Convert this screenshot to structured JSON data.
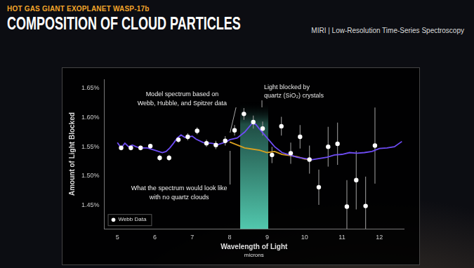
{
  "chart_data": {
    "type": "scatter",
    "subtitle": "HOT GAS GIANT EXOPLANET WASP-17b",
    "title": "COMPOSITION OF CLOUD PARTICLES",
    "header_note": "MIRI | Low-Resolution Time-Series Spectroscopy",
    "xlabel": [
      "Wavelength of Light",
      "microns"
    ],
    "ylabel": "Amount of Light Blocked",
    "xlim": [
      4.65,
      12.65
    ],
    "xticks": [
      5,
      6,
      7,
      8,
      9,
      10,
      11,
      12
    ],
    "ylim": [
      1.41,
      1.665
    ],
    "yticks": [
      {
        "value": 1.45,
        "label": "1.45%"
      },
      {
        "value": 1.5,
        "label": "1.50%"
      },
      {
        "value": 1.55,
        "label": "1.55%"
      },
      {
        "value": 1.6,
        "label": "1.60%"
      },
      {
        "value": 1.65,
        "label": "1.65%"
      }
    ],
    "grid": false,
    "legend": "lower left",
    "series": [
      {
        "name": "Webb Data",
        "type": "scatter",
        "marker": "circle",
        "color": "#ffffff",
        "x": [
          5.1,
          5.36,
          5.62,
          5.88,
          6.13,
          6.38,
          6.63,
          6.88,
          7.13,
          7.38,
          7.63,
          7.88,
          8.13,
          8.38,
          8.63,
          8.88,
          9.13,
          9.38,
          9.63,
          9.88,
          10.13,
          10.38,
          10.63,
          10.88,
          11.13,
          11.38,
          11.63,
          11.88
        ],
        "values": [
          1.548,
          1.548,
          1.548,
          1.551,
          1.531,
          1.531,
          1.562,
          1.567,
          1.577,
          1.556,
          1.553,
          1.56,
          1.578,
          1.606,
          1.592,
          1.581,
          1.536,
          1.585,
          1.539,
          1.567,
          1.528,
          1.481,
          1.55,
          1.555,
          1.448,
          1.493,
          1.449,
          1.552
        ],
        "errors": [
          0.004,
          0.004,
          0.004,
          0.004,
          0.005,
          0.005,
          0.005,
          0.006,
          0.006,
          0.006,
          0.007,
          0.008,
          0.009,
          0.01,
          0.011,
          0.012,
          0.014,
          0.016,
          0.018,
          0.02,
          0.024,
          0.03,
          0.034,
          0.036,
          0.045,
          0.05,
          0.05,
          0.065
        ]
      },
      {
        "type": "line",
        "color": "#6e4cf5",
        "x": [
          5.0,
          5.1,
          5.2,
          5.3,
          5.4,
          5.5,
          5.6,
          5.8,
          6.0,
          6.2,
          6.3,
          6.4,
          6.5,
          6.6,
          6.7,
          6.8,
          7.0,
          7.1,
          7.3,
          7.5,
          7.7,
          7.9,
          8.0,
          8.2,
          8.4,
          8.6,
          8.7,
          8.8,
          9.0,
          9.2,
          9.4,
          9.6,
          9.8,
          10.0,
          10.2,
          10.4,
          10.6,
          10.8,
          11.0,
          11.2,
          11.4,
          11.6,
          11.8,
          12.0,
          12.2,
          12.4,
          12.6
        ],
        "values": [
          1.557,
          1.548,
          1.556,
          1.55,
          1.553,
          1.55,
          1.548,
          1.548,
          1.544,
          1.54,
          1.542,
          1.548,
          1.556,
          1.565,
          1.57,
          1.566,
          1.568,
          1.563,
          1.557,
          1.556,
          1.554,
          1.558,
          1.562,
          1.565,
          1.575,
          1.59,
          1.588,
          1.58,
          1.565,
          1.55,
          1.54,
          1.536,
          1.532,
          1.53,
          1.528,
          1.53,
          1.532,
          1.536,
          1.537,
          1.54,
          1.539,
          1.54,
          1.542,
          1.547,
          1.548,
          1.55,
          1.559
        ]
      },
      {
        "type": "line",
        "color": "#d9a020",
        "x": [
          8.0,
          8.2,
          8.4,
          8.6,
          8.8,
          9.0,
          9.2,
          9.4,
          9.6,
          9.8,
          10.0,
          10.2
        ],
        "values": [
          1.558,
          1.553,
          1.548,
          1.546,
          1.544,
          1.54,
          1.542,
          1.537,
          1.535,
          1.533,
          1.529,
          1.528
        ]
      }
    ],
    "band": {
      "x": [
        8.28,
        9.03
      ],
      "color": "#5ee6c8",
      "label": [
        "Light blocked by",
        "quartz (SiO₂) crystals"
      ]
    },
    "annotations": [
      [
        "Model spectrum based on",
        "Webb, Hubble, and Spitzer data"
      ],
      [
        "What the spectrum would look like",
        "with no quartz clouds"
      ]
    ]
  }
}
